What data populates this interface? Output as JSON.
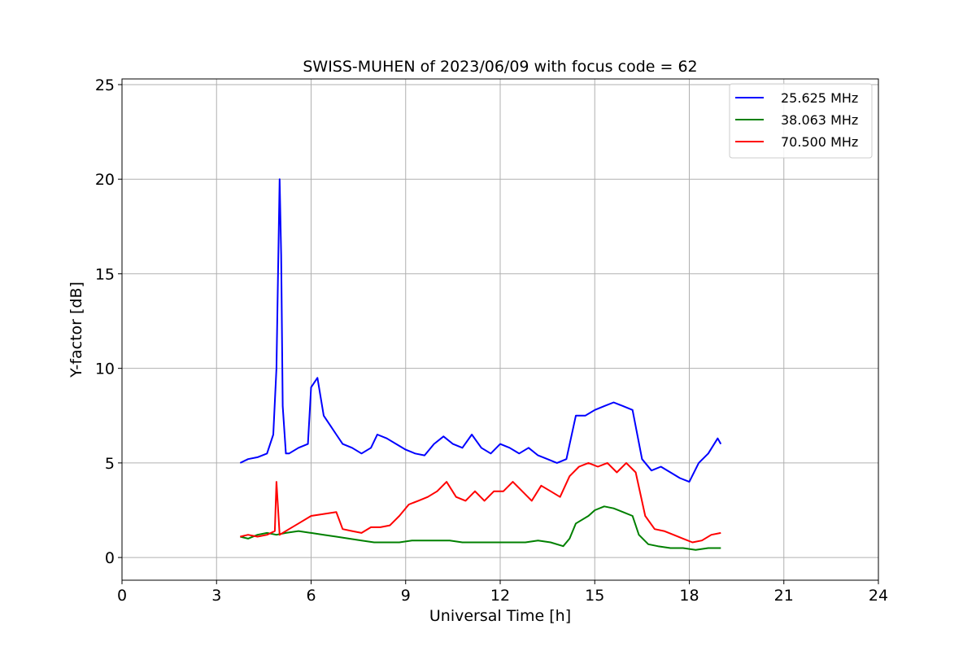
{
  "chart_data": {
    "type": "line",
    "title": "SWISS-MUHEN of 2023/06/09 with focus code = 62",
    "xlabel": "Universal Time [h]",
    "ylabel": "Y-factor [dB]",
    "xlim": [
      0,
      24
    ],
    "ylim": [
      -1.2,
      25.3
    ],
    "xticks": [
      0,
      3,
      6,
      9,
      12,
      15,
      18,
      21,
      24
    ],
    "xtick_labels": [
      "0",
      "3",
      "6",
      "9",
      "12",
      "15",
      "18",
      "21",
      "24"
    ],
    "yticks": [
      0,
      5,
      10,
      15,
      20,
      25
    ],
    "ytick_labels": [
      "0",
      "5",
      "10",
      "15",
      "20",
      "25"
    ],
    "grid": true,
    "legend_position": "top-right",
    "series": [
      {
        "name": "25.625 MHz",
        "color": "#0000ff",
        "x": [
          3.75,
          4.0,
          4.3,
          4.6,
          4.8,
          4.9,
          5.0,
          5.05,
          5.1,
          5.2,
          5.3,
          5.6,
          5.9,
          6.0,
          6.2,
          6.4,
          6.6,
          6.8,
          7.0,
          7.3,
          7.6,
          7.9,
          8.1,
          8.4,
          8.7,
          9.0,
          9.3,
          9.6,
          9.9,
          10.2,
          10.5,
          10.8,
          11.1,
          11.4,
          11.7,
          12.0,
          12.3,
          12.6,
          12.9,
          13.2,
          13.5,
          13.8,
          14.1,
          14.4,
          14.7,
          15.0,
          15.3,
          15.6,
          15.9,
          16.2,
          16.5,
          16.8,
          17.1,
          17.4,
          17.7,
          18.0,
          18.3,
          18.6,
          18.9,
          19.0
        ],
        "y": [
          5.0,
          5.2,
          5.3,
          5.5,
          6.5,
          10.0,
          20.0,
          16.0,
          8.0,
          5.5,
          5.5,
          5.8,
          6.0,
          9.0,
          9.5,
          7.5,
          7.0,
          6.5,
          6.0,
          5.8,
          5.5,
          5.8,
          6.5,
          6.3,
          6.0,
          5.7,
          5.5,
          5.4,
          6.0,
          6.4,
          6.0,
          5.8,
          6.5,
          5.8,
          5.5,
          6.0,
          5.8,
          5.5,
          5.8,
          5.4,
          5.2,
          5.0,
          5.2,
          7.5,
          7.5,
          7.8,
          8.0,
          8.2,
          8.0,
          7.8,
          5.2,
          4.6,
          4.8,
          4.5,
          4.2,
          4.0,
          5.0,
          5.5,
          6.3,
          6.0
        ]
      },
      {
        "name": "38.063 MHz",
        "color": "#008000",
        "x": [
          3.75,
          4.0,
          4.3,
          4.6,
          4.9,
          5.2,
          5.6,
          6.0,
          6.4,
          6.8,
          7.2,
          7.6,
          8.0,
          8.4,
          8.8,
          9.2,
          9.6,
          10.0,
          10.4,
          10.8,
          11.2,
          11.6,
          12.0,
          12.4,
          12.8,
          13.2,
          13.6,
          14.0,
          14.2,
          14.4,
          14.8,
          15.0,
          15.3,
          15.6,
          15.9,
          16.2,
          16.4,
          16.7,
          17.0,
          17.4,
          17.8,
          18.2,
          18.6,
          19.0
        ],
        "y": [
          1.1,
          1.0,
          1.2,
          1.3,
          1.2,
          1.3,
          1.4,
          1.3,
          1.2,
          1.1,
          1.0,
          0.9,
          0.8,
          0.8,
          0.8,
          0.9,
          0.9,
          0.9,
          0.9,
          0.8,
          0.8,
          0.8,
          0.8,
          0.8,
          0.8,
          0.9,
          0.8,
          0.6,
          1.0,
          1.8,
          2.2,
          2.5,
          2.7,
          2.6,
          2.4,
          2.2,
          1.2,
          0.7,
          0.6,
          0.5,
          0.5,
          0.4,
          0.5,
          0.5
        ]
      },
      {
        "name": "70.500 MHz",
        "color": "#ff0000",
        "x": [
          3.75,
          4.0,
          4.3,
          4.6,
          4.85,
          4.9,
          5.0,
          5.3,
          5.6,
          6.0,
          6.4,
          6.8,
          7.0,
          7.3,
          7.6,
          7.9,
          8.2,
          8.5,
          8.8,
          9.1,
          9.4,
          9.7,
          10.0,
          10.3,
          10.6,
          10.9,
          11.2,
          11.5,
          11.8,
          12.1,
          12.4,
          12.7,
          13.0,
          13.3,
          13.6,
          13.9,
          14.2,
          14.5,
          14.8,
          15.1,
          15.4,
          15.7,
          16.0,
          16.3,
          16.6,
          16.9,
          17.2,
          17.5,
          17.8,
          18.1,
          18.4,
          18.7,
          19.0
        ],
        "y": [
          1.1,
          1.2,
          1.1,
          1.2,
          1.4,
          4.0,
          1.2,
          1.5,
          1.8,
          2.2,
          2.3,
          2.4,
          1.5,
          1.4,
          1.3,
          1.6,
          1.6,
          1.7,
          2.2,
          2.8,
          3.0,
          3.2,
          3.5,
          4.0,
          3.2,
          3.0,
          3.5,
          3.0,
          3.5,
          3.5,
          4.0,
          3.5,
          3.0,
          3.8,
          3.5,
          3.2,
          4.3,
          4.8,
          5.0,
          4.8,
          5.0,
          4.5,
          5.0,
          4.5,
          2.2,
          1.5,
          1.4,
          1.2,
          1.0,
          0.8,
          0.9,
          1.2,
          1.3
        ]
      }
    ]
  }
}
